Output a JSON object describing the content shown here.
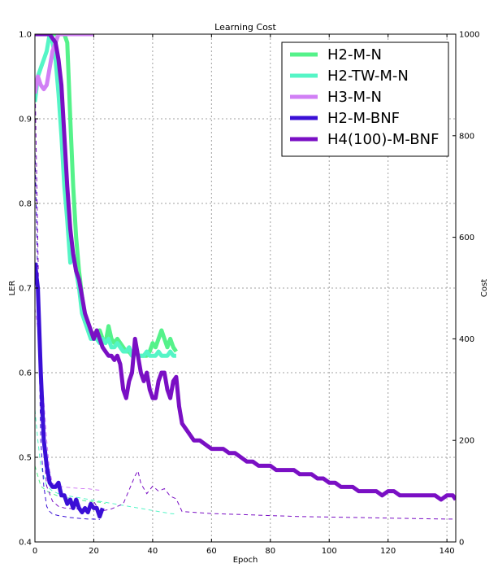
{
  "chart_data": {
    "type": "line",
    "title": "Learning Cost",
    "xlabel": "Epoch",
    "ylabel_left": "LER",
    "ylabel_right": "Cost",
    "xlim": [
      0,
      143
    ],
    "ylim_left": [
      0.4,
      1.0
    ],
    "ylim_right": [
      0,
      1000
    ],
    "x_ticks": [
      0,
      20,
      40,
      60,
      80,
      100,
      120,
      140
    ],
    "y_left_ticks": [
      0.4,
      0.5,
      0.6,
      0.7,
      0.8,
      0.9,
      1.0
    ],
    "y_right_ticks": [
      0,
      200,
      400,
      600,
      800,
      1000
    ],
    "grid": true,
    "legend_position": "top-right",
    "series": [
      {
        "name": "H2-M-N",
        "color": "#55f28a",
        "ler": {
          "x": [
            0,
            1,
            2,
            3,
            4,
            5,
            6,
            7,
            8,
            9,
            10,
            11,
            12,
            13,
            14,
            15,
            16,
            17,
            18,
            19,
            20,
            21,
            22,
            23,
            24,
            25,
            26,
            27,
            28,
            29,
            30,
            31,
            32,
            33,
            34,
            35,
            36,
            37,
            38,
            39,
            40,
            41,
            42,
            43,
            44,
            45,
            46,
            47,
            48
          ],
          "y": [
            1.0,
            1.0,
            1.0,
            1.0,
            1.0,
            1.0,
            1.0,
            1.0,
            1.0,
            1.0,
            1.0,
            0.99,
            0.9,
            0.82,
            0.76,
            0.72,
            0.69,
            0.66,
            0.655,
            0.645,
            0.64,
            0.64,
            0.65,
            0.64,
            0.635,
            0.655,
            0.64,
            0.635,
            0.64,
            0.635,
            0.63,
            0.625,
            0.625,
            0.62,
            0.625,
            0.62,
            0.62,
            0.62,
            0.62,
            0.625,
            0.635,
            0.63,
            0.64,
            0.65,
            0.64,
            0.63,
            0.64,
            0.63,
            0.625
          ]
        },
        "cost": {
          "x": [
            0,
            2,
            4,
            6,
            8,
            10,
            12,
            14,
            16,
            18,
            20,
            22,
            24
          ],
          "y": [
            150,
            110,
            100,
            95,
            90,
            88,
            86,
            84,
            82,
            80,
            80,
            78,
            76
          ]
        }
      },
      {
        "name": "H2-TW-M-N",
        "color": "#55f5c6",
        "ler": {
          "x": [
            0,
            1,
            2,
            3,
            4,
            5,
            6,
            7,
            8,
            9,
            10,
            11,
            12,
            13,
            14,
            15,
            16,
            17,
            18,
            19,
            20,
            21,
            22,
            23,
            24,
            25,
            26,
            27,
            28,
            29,
            30,
            31,
            32,
            33,
            34,
            35,
            36,
            37,
            38,
            39,
            40,
            41,
            42,
            43,
            44,
            45,
            46,
            47,
            48
          ],
          "y": [
            0.92,
            0.95,
            0.96,
            0.97,
            0.98,
            1.0,
            0.99,
            0.97,
            0.93,
            0.88,
            0.82,
            0.78,
            0.73,
            0.74,
            0.72,
            0.7,
            0.67,
            0.66,
            0.65,
            0.64,
            0.64,
            0.64,
            0.635,
            0.64,
            0.635,
            0.64,
            0.63,
            0.63,
            0.635,
            0.63,
            0.625,
            0.625,
            0.63,
            0.62,
            0.625,
            0.62,
            0.62,
            0.62,
            0.625,
            0.62,
            0.62,
            0.62,
            0.625,
            0.62,
            0.62,
            0.62,
            0.625,
            0.62,
            0.62
          ]
        },
        "cost": {
          "x": [
            0,
            1,
            2,
            4,
            6,
            8,
            10,
            14,
            18,
            22,
            26,
            30,
            34,
            38,
            42,
            46,
            48
          ],
          "y": [
            260,
            200,
            150,
            110,
            100,
            95,
            92,
            88,
            84,
            80,
            76,
            72,
            68,
            64,
            60,
            56,
            55
          ]
        }
      },
      {
        "name": "H3-M-N",
        "color": "#d17ff5",
        "ler": {
          "x": [
            0,
            1,
            2,
            3,
            4,
            5,
            6,
            7,
            8,
            9,
            10,
            12,
            14,
            16,
            18,
            20
          ],
          "y": [
            0.93,
            0.95,
            0.94,
            0.935,
            0.94,
            0.96,
            0.98,
            0.99,
            1.0,
            1.0,
            1.0,
            1.0,
            1.0,
            1.0,
            1.0,
            1.0
          ]
        },
        "cost": {
          "x": [
            0,
            1,
            2,
            3,
            4,
            5,
            6,
            8,
            10,
            12,
            14,
            16,
            18,
            20,
            22
          ],
          "y": [
            460,
            420,
            350,
            280,
            200,
            140,
            115,
            110,
            108,
            107,
            106,
            105,
            105,
            103,
            102
          ]
        }
      },
      {
        "name": "H2-M-BNF",
        "color": "#3a0fd6",
        "ler": {
          "x": [
            0,
            1,
            2,
            3,
            4,
            5,
            6,
            7,
            8,
            9,
            10,
            11,
            12,
            13,
            14,
            15,
            16,
            17,
            18,
            19,
            20,
            21,
            22,
            23
          ],
          "y": [
            0.73,
            0.7,
            0.6,
            0.52,
            0.49,
            0.47,
            0.465,
            0.465,
            0.47,
            0.455,
            0.455,
            0.445,
            0.45,
            0.44,
            0.45,
            0.44,
            0.435,
            0.44,
            0.435,
            0.445,
            0.44,
            0.44,
            0.43,
            0.44
          ]
        },
        "cost": {
          "x": [
            0,
            1,
            2,
            3,
            4,
            5,
            6,
            8,
            10,
            12,
            14,
            16,
            18,
            20,
            22
          ],
          "y": [
            780,
            500,
            200,
            110,
            70,
            60,
            55,
            52,
            50,
            48,
            47,
            46,
            45,
            45,
            44
          ]
        }
      },
      {
        "name": "H4(100)-M-BNF",
        "color": "#7a0fc4",
        "ler": {
          "x": [
            0,
            1,
            2,
            3,
            4,
            5,
            6,
            7,
            8,
            9,
            10,
            11,
            12,
            13,
            14,
            15,
            16,
            17,
            18,
            19,
            20,
            21,
            22,
            23,
            24,
            25,
            26,
            27,
            28,
            29,
            30,
            31,
            32,
            33,
            34,
            35,
            36,
            37,
            38,
            39,
            40,
            41,
            42,
            43,
            44,
            45,
            46,
            47,
            48,
            49,
            50,
            52,
            54,
            56,
            58,
            60,
            62,
            64,
            66,
            68,
            70,
            72,
            74,
            76,
            78,
            80,
            82,
            84,
            86,
            88,
            90,
            92,
            94,
            96,
            98,
            100,
            102,
            104,
            106,
            108,
            110,
            112,
            114,
            116,
            118,
            120,
            122,
            124,
            126,
            128,
            130,
            132,
            134,
            136,
            138,
            140,
            142,
            143
          ],
          "y": [
            1.0,
            1.0,
            1.0,
            1.0,
            1.0,
            1.0,
            0.995,
            0.99,
            0.97,
            0.94,
            0.88,
            0.82,
            0.77,
            0.74,
            0.72,
            0.71,
            0.69,
            0.67,
            0.66,
            0.65,
            0.64,
            0.65,
            0.64,
            0.63,
            0.625,
            0.62,
            0.62,
            0.615,
            0.62,
            0.61,
            0.58,
            0.57,
            0.59,
            0.6,
            0.64,
            0.62,
            0.6,
            0.59,
            0.6,
            0.58,
            0.57,
            0.57,
            0.59,
            0.6,
            0.6,
            0.58,
            0.57,
            0.59,
            0.595,
            0.56,
            0.54,
            0.53,
            0.52,
            0.52,
            0.515,
            0.51,
            0.51,
            0.51,
            0.505,
            0.505,
            0.5,
            0.495,
            0.495,
            0.49,
            0.49,
            0.49,
            0.485,
            0.485,
            0.485,
            0.485,
            0.48,
            0.48,
            0.48,
            0.475,
            0.475,
            0.47,
            0.47,
            0.465,
            0.465,
            0.465,
            0.46,
            0.46,
            0.46,
            0.46,
            0.455,
            0.46,
            0.46,
            0.455,
            0.455,
            0.455,
            0.455,
            0.455,
            0.455,
            0.455,
            0.45,
            0.455,
            0.455,
            0.45
          ]
        },
        "cost": {
          "x": [
            0,
            2,
            4,
            6,
            8,
            10,
            14,
            18,
            20,
            22,
            26,
            30,
            34,
            35,
            36,
            38,
            40,
            42,
            44,
            46,
            48,
            50,
            60,
            70,
            80,
            90,
            100,
            110,
            120,
            130,
            140,
            143
          ],
          "y": [
            920,
            250,
            110,
            80,
            70,
            67,
            65,
            65,
            80,
            60,
            65,
            75,
            130,
            140,
            115,
            95,
            110,
            100,
            105,
            90,
            85,
            60,
            56,
            54,
            52,
            50,
            49,
            48,
            47,
            46,
            45,
            45
          ]
        }
      }
    ]
  }
}
